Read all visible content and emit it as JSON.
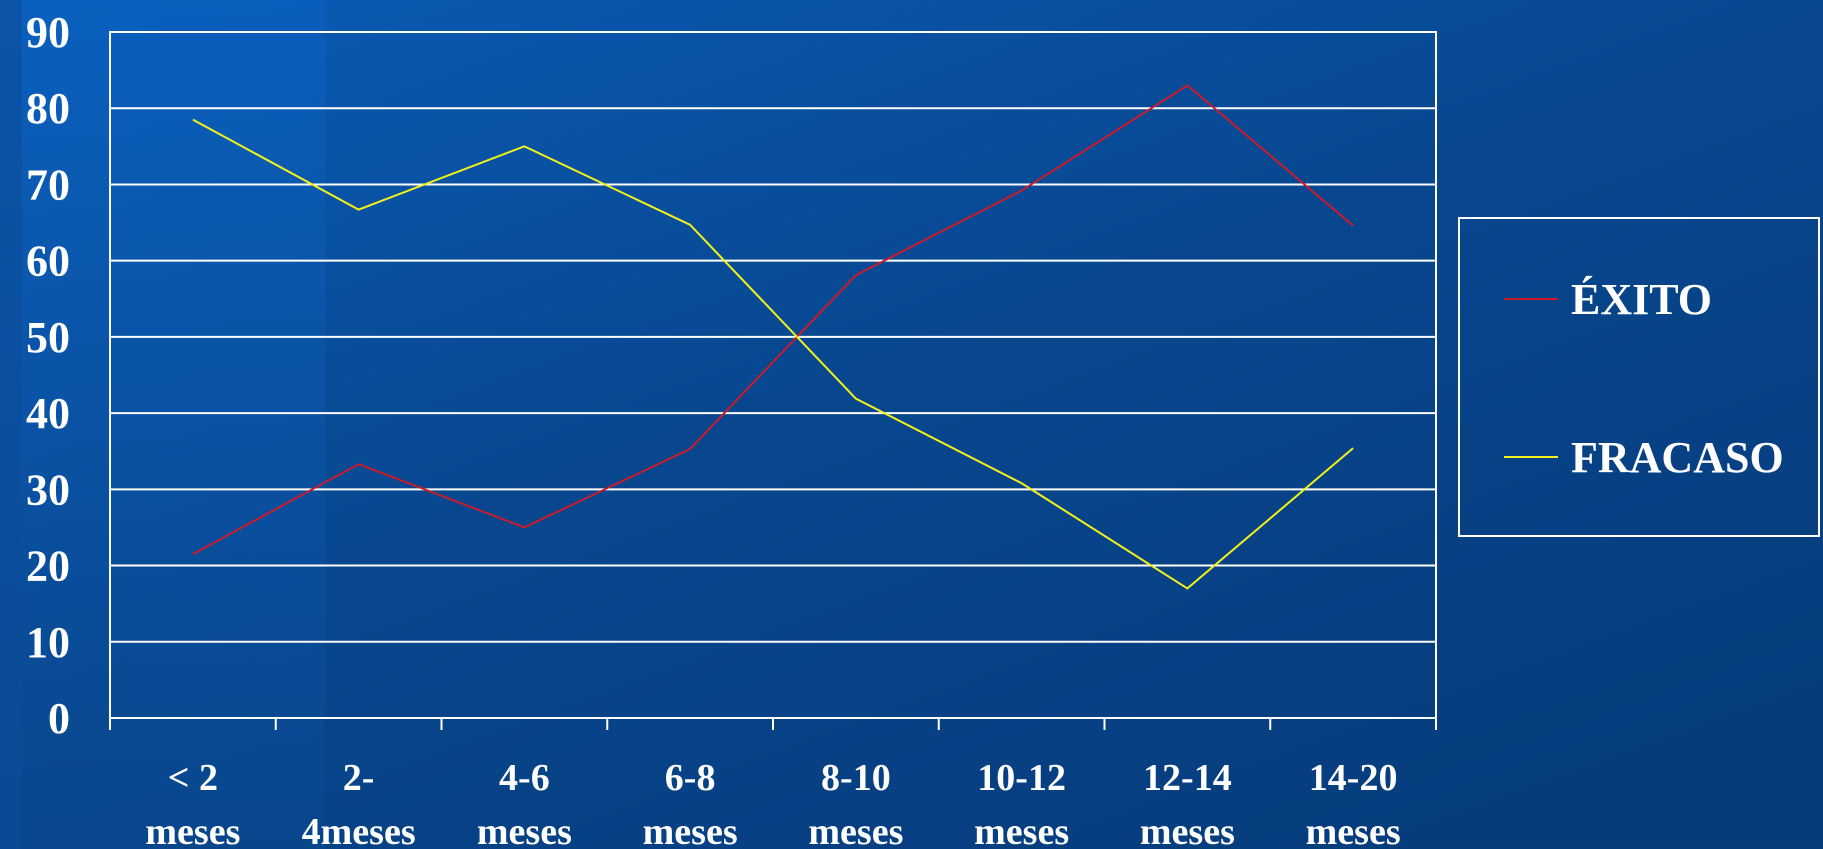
{
  "chart_data": {
    "type": "line",
    "title": "",
    "xlabel": "",
    "ylabel": "",
    "ylim": [
      0,
      90
    ],
    "yticks": [
      0,
      10,
      20,
      30,
      40,
      50,
      60,
      70,
      80,
      90
    ],
    "grid": true,
    "legend_position": "right",
    "categories": [
      [
        "< 2",
        "meses"
      ],
      [
        "2-",
        "4meses"
      ],
      [
        "4-6",
        "meses"
      ],
      [
        "6-8",
        "meses"
      ],
      [
        "8-10",
        "meses"
      ],
      [
        "10-12",
        "meses"
      ],
      [
        "12-14",
        "meses"
      ],
      [
        "14-20",
        "meses"
      ]
    ],
    "series": [
      {
        "name": "ÉXITO",
        "color": "#cc1a2a",
        "values": [
          21.5,
          33.3,
          25.0,
          35.3,
          58.1,
          69.2,
          83.0,
          64.6
        ]
      },
      {
        "name": "FRACASO",
        "color": "#f2f21a",
        "values": [
          78.5,
          66.7,
          75.0,
          64.7,
          41.9,
          30.8,
          17.0,
          35.4
        ]
      }
    ]
  }
}
